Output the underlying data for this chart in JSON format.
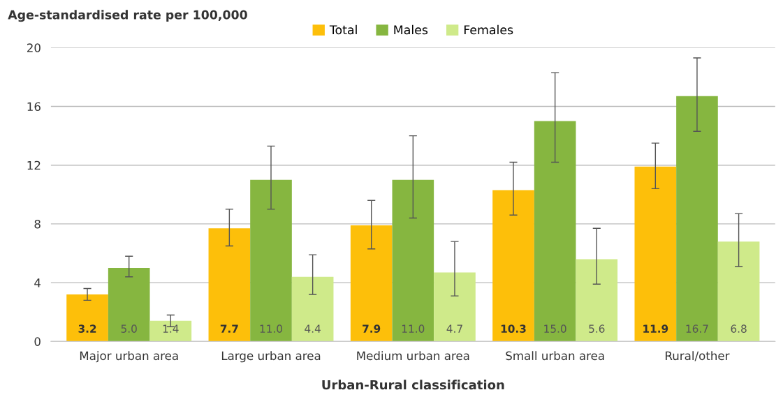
{
  "chart_data": {
    "type": "bar",
    "ylabel": "Age-standardised rate per 100,000",
    "xlabel": "Urban-Rural classification",
    "categories": [
      "Major urban area",
      "Large urban area",
      "Medium urban area",
      "Small urban area",
      "Rural/other"
    ],
    "series": [
      {
        "name": "Total",
        "color": "#fdbf0a",
        "values": [
          3.2,
          7.7,
          7.9,
          10.3,
          11.9
        ],
        "value_labels": [
          "3.2",
          "7.7",
          "7.9",
          "10.3",
          "11.9"
        ],
        "errors": [
          [
            2.8,
            3.6
          ],
          [
            6.5,
            9.0
          ],
          [
            6.3,
            9.6
          ],
          [
            8.6,
            12.2
          ],
          [
            10.4,
            13.5
          ]
        ]
      },
      {
        "name": "Males",
        "color": "#86b640",
        "values": [
          5.0,
          11.0,
          11.0,
          15.0,
          16.7
        ],
        "value_labels": [
          "5.0",
          "11.0",
          "11.0",
          "15.0",
          "16.7"
        ],
        "errors": [
          [
            4.4,
            5.8
          ],
          [
            9.0,
            13.3
          ],
          [
            8.4,
            14.0
          ],
          [
            12.2,
            18.3
          ],
          [
            14.3,
            19.3
          ]
        ]
      },
      {
        "name": "Females",
        "color": "#cfea8a",
        "values": [
          1.4,
          4.4,
          4.7,
          5.6,
          6.8
        ],
        "value_labels": [
          "1.4",
          "4.4",
          "4.7",
          "5.6",
          "6.8"
        ],
        "errors": [
          [
            1.0,
            1.8
          ],
          [
            3.2,
            5.9
          ],
          [
            3.1,
            6.8
          ],
          [
            3.9,
            7.7
          ],
          [
            5.1,
            8.7
          ]
        ]
      }
    ],
    "ylim": [
      0,
      20
    ],
    "yticks": [
      0,
      4,
      8,
      12,
      16,
      20
    ],
    "grid": "y",
    "legend": "top"
  }
}
